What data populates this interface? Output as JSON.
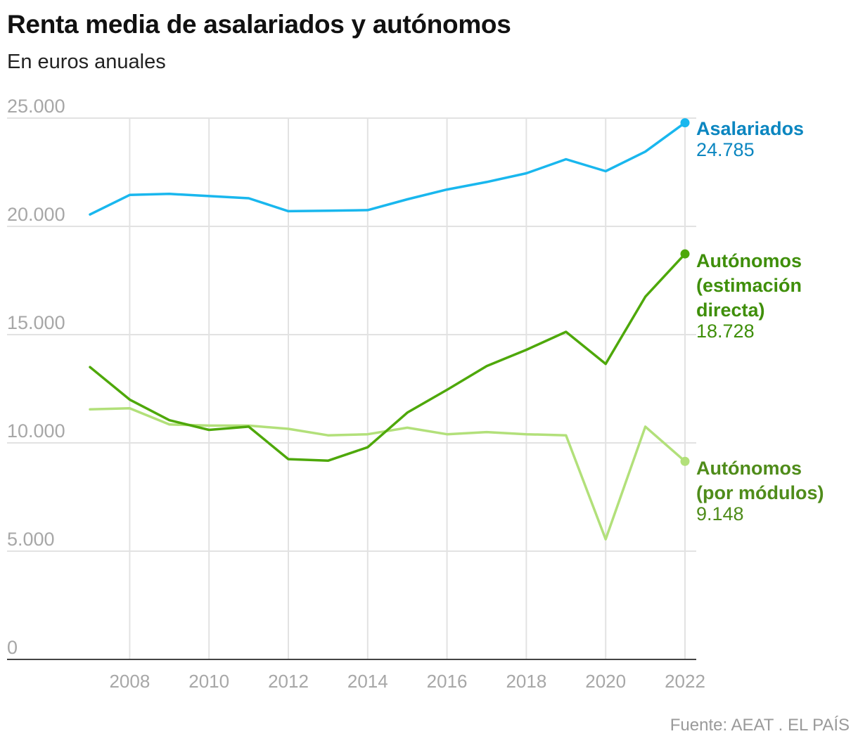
{
  "title": "Renta media de asalariados y autónomos",
  "subtitle": "En euros anuales",
  "source": "Fuente: AEAT . EL PAÍS",
  "colors": {
    "asalariados": "#19b7ee",
    "asalariados_label": "#0b86c0",
    "directa": "#4ea80a",
    "directa_label": "#3f8f0a",
    "modulos": "#b2e07a",
    "modulos_label": "#4f8c1a",
    "grid": "#e2e2e2",
    "tick": "#a7a7a7",
    "axis": "#444444"
  },
  "chart_data": {
    "type": "line",
    "ylim": [
      0,
      25000
    ],
    "xlim": [
      2007,
      2022
    ],
    "y_ticks": [
      0,
      5000,
      10000,
      15000,
      20000,
      25000
    ],
    "y_tick_labels": [
      "0",
      "5.000",
      "10.000",
      "15.000",
      "20.000",
      "25.000"
    ],
    "x_ticks": [
      2008,
      2010,
      2012,
      2014,
      2016,
      2018,
      2020,
      2022
    ],
    "x_tick_labels": [
      "2008",
      "2010",
      "2012",
      "2014",
      "2016",
      "2018",
      "2020",
      "2022"
    ],
    "grid": true,
    "x": [
      2007,
      2008,
      2009,
      2010,
      2011,
      2012,
      2013,
      2014,
      2015,
      2016,
      2017,
      2018,
      2019,
      2020,
      2021,
      2022
    ],
    "series": [
      {
        "key": "asalariados",
        "name_lines": [
          "Asalariados"
        ],
        "end_label": "24.785",
        "values": [
          20550,
          21450,
          21500,
          21400,
          21300,
          20700,
          20720,
          20750,
          21250,
          21700,
          22050,
          22450,
          23100,
          22550,
          23450,
          24785
        ]
      },
      {
        "key": "directa",
        "name_lines": [
          "Autónomos",
          "(estimación",
          "directa)"
        ],
        "end_label": "18.728",
        "values": [
          13500,
          12000,
          11050,
          10600,
          10750,
          9250,
          9180,
          9800,
          11400,
          12450,
          13550,
          14300,
          15130,
          13650,
          16750,
          18728
        ]
      },
      {
        "key": "modulos",
        "name_lines": [
          "Autónomos",
          "(por módulos)"
        ],
        "end_label": "9.148",
        "values": [
          11550,
          11600,
          10850,
          10800,
          10800,
          10650,
          10350,
          10400,
          10700,
          10400,
          10500,
          10400,
          10350,
          5550,
          10750,
          9148
        ]
      }
    ]
  }
}
